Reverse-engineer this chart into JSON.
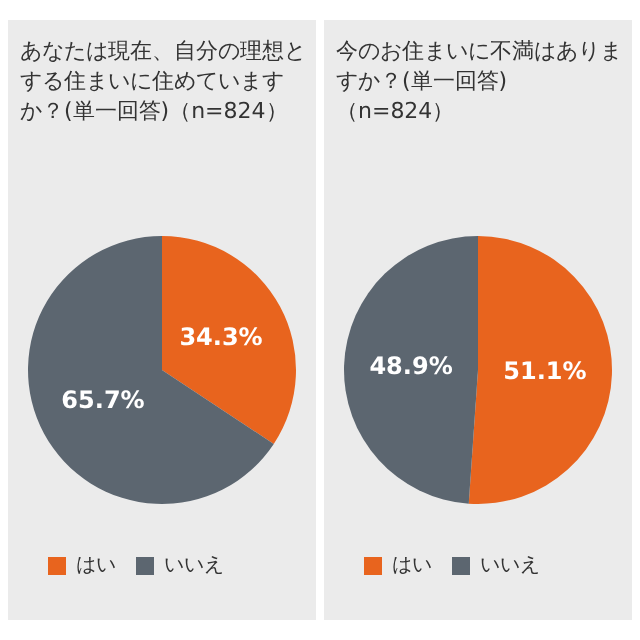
{
  "chart_data": [
    {
      "type": "pie",
      "title": "あなたは現在、自分の理想とする住まいに住めていますか？(単一回答)（n=824）",
      "categories": [
        "はい",
        "いいえ"
      ],
      "values": [
        34.3,
        65.7
      ],
      "colors": [
        "#e8641e",
        "#5c6670"
      ],
      "value_labels": [
        "34.3%",
        "65.7%"
      ],
      "legend": "bottom left"
    },
    {
      "type": "pie",
      "title": "今のお住まいに不満はありますか？(単一回答)（n=824）",
      "categories": [
        "はい",
        "いいえ"
      ],
      "values": [
        51.1,
        48.9
      ],
      "colors": [
        "#e8641e",
        "#5c6670"
      ],
      "value_labels": [
        "51.1%",
        "48.9%"
      ],
      "legend": "bottom left"
    }
  ]
}
